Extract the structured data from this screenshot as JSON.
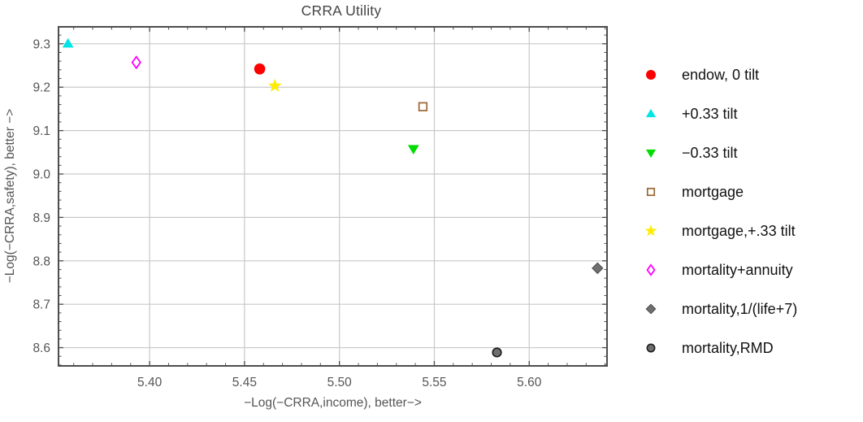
{
  "title": "CRRA Utility",
  "chart_data": {
    "type": "scatter",
    "title": "CRRA Utility",
    "xlabel": "−Log(−CRRA,income), better−>",
    "ylabel": "−Log(−CRRA,safety), better −>",
    "xlim": [
      5.352,
      5.641
    ],
    "ylim": [
      8.558,
      9.339
    ],
    "x_ticks": [
      {
        "v": 5.4,
        "label": "5.40"
      },
      {
        "v": 5.45,
        "label": "5.45"
      },
      {
        "v": 5.5,
        "label": "5.50"
      },
      {
        "v": 5.55,
        "label": "5.55"
      },
      {
        "v": 5.6,
        "label": "5.60"
      }
    ],
    "y_ticks": [
      {
        "v": 8.6,
        "label": "8.6"
      },
      {
        "v": 8.7,
        "label": "8.7"
      },
      {
        "v": 8.8,
        "label": "8.8"
      },
      {
        "v": 8.9,
        "label": "8.9"
      },
      {
        "v": 9.0,
        "label": "9.0"
      },
      {
        "v": 9.1,
        "label": "9.1"
      },
      {
        "v": 9.2,
        "label": "9.2"
      },
      {
        "v": 9.3,
        "label": "9.3"
      }
    ],
    "x_minor_step": 0.01,
    "y_minor_step": 0.02,
    "grid": true,
    "legend_position": "right",
    "colors": {
      "background": "#ffffff",
      "frame": "#4d4d4d",
      "grid": "#c9c9c9",
      "tick_labels": "#555555",
      "axis_labels": "#555555",
      "title": "#444444",
      "legend_text": "#111111"
    },
    "series": [
      {
        "name": "endow, 0 tilt",
        "marker": "circle",
        "fill": "#fe0000",
        "stroke": "none",
        "size": 6.8,
        "points": [
          [
            5.458,
            9.242
          ]
        ]
      },
      {
        "name": "+0.33 tilt",
        "marker": "triangle-up",
        "fill": "#00e5e5",
        "stroke": "none",
        "size": 7.0,
        "points": [
          [
            5.357,
            9.3
          ]
        ]
      },
      {
        "name": "−0.33 tilt",
        "marker": "triangle-down",
        "fill": "#00dc00",
        "stroke": "none",
        "size": 7.0,
        "points": [
          [
            5.539,
            9.058
          ]
        ]
      },
      {
        "name": "mortgage",
        "marker": "square-open",
        "fill": "none",
        "stroke": "#996633",
        "size": 4.8,
        "points": [
          [
            5.544,
            9.155
          ]
        ]
      },
      {
        "name": "mortgage,+.33 tilt",
        "marker": "star",
        "fill": "#ffec00",
        "stroke": "none",
        "size": 9.0,
        "points": [
          [
            5.466,
            9.203
          ]
        ]
      },
      {
        "name": "mortality+annuity",
        "marker": "diamond-open",
        "fill": "none",
        "stroke": "#ff00ff",
        "size": 7.0,
        "points": [
          [
            5.393,
            9.257
          ]
        ]
      },
      {
        "name": "mortality,1/(life+7)",
        "marker": "diamond",
        "fill": "#6f6f6f",
        "stroke": "#4a4a4a",
        "size": 6.5,
        "points": [
          [
            5.636,
            8.783
          ]
        ]
      },
      {
        "name": "mortality,RMD",
        "marker": "circle-edged",
        "fill": "#6f6f6f",
        "stroke": "#1c1c1c",
        "size": 5.3,
        "points": [
          [
            5.583,
            8.589
          ]
        ]
      }
    ]
  }
}
